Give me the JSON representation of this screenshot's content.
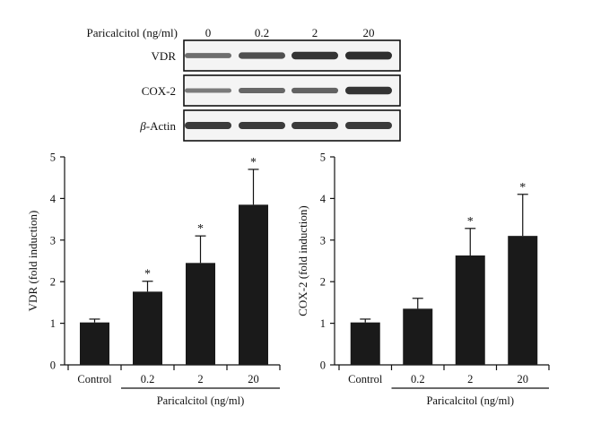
{
  "blot": {
    "treatment_label": "Paricalcitol (ng/ml)",
    "doses": [
      "0",
      "0.2",
      "2",
      "20"
    ],
    "rows": [
      {
        "label": "VDR",
        "intensity": [
          0.45,
          0.7,
          0.9,
          0.95
        ]
      },
      {
        "label": "COX-2",
        "intensity": [
          0.35,
          0.5,
          0.55,
          0.9
        ]
      },
      {
        "label_prefix": "β",
        "label": "-Actin",
        "intensity": [
          0.85,
          0.85,
          0.85,
          0.85
        ]
      }
    ]
  },
  "chart_data": [
    {
      "type": "bar",
      "ylabel": "VDR (fold induction)",
      "xlabel": "Paricalcitol (ng/ml)",
      "categories": [
        "Control",
        "0.2",
        "2",
        "20"
      ],
      "values": [
        1.02,
        1.76,
        2.45,
        3.85
      ],
      "errors": [
        0.08,
        0.25,
        0.65,
        0.85
      ],
      "significant": [
        false,
        true,
        true,
        true
      ],
      "marker": "*",
      "ylim": [
        0,
        5
      ],
      "yticks": [
        "0",
        "1",
        "2",
        "3",
        "4",
        "5"
      ],
      "bar_color": "#1a1a1a"
    },
    {
      "type": "bar",
      "ylabel": "COX-2 (fold induction)",
      "xlabel": "Paricalcitol (ng/ml)",
      "categories": [
        "Control",
        "0.2",
        "2",
        "20"
      ],
      "values": [
        1.02,
        1.35,
        2.63,
        3.1
      ],
      "errors": [
        0.08,
        0.25,
        0.65,
        1.0
      ],
      "significant": [
        false,
        false,
        true,
        true
      ],
      "marker": "*",
      "ylim": [
        0,
        5
      ],
      "yticks": [
        "0",
        "1",
        "2",
        "3",
        "4",
        "5"
      ],
      "bar_color": "#1a1a1a"
    }
  ]
}
